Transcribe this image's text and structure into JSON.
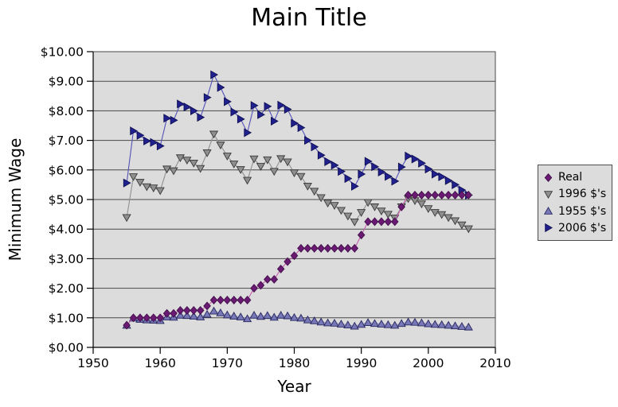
{
  "title": "Main Title",
  "colors": {
    "page_background": "#ffffff",
    "plot_background": "#dcdcdc",
    "gridline": "#4a4a4a",
    "axis": "#000000",
    "legend_background": "#dcdcdc",
    "legend_border": "#4d4d4d",
    "real_marker": "#6a1a72",
    "real_line": "#c45fb0",
    "dollars1996_marker": "#8f8f8f",
    "dollars1955_marker": "#7878b8",
    "dollars2006_marker": "#20208e"
  },
  "legend": {
    "items": [
      "Real",
      "1996 $'s",
      "1955 $'s",
      "2006 $'s"
    ]
  },
  "chart_data": {
    "type": "line",
    "title": "Main Title",
    "xlabel": "Year",
    "ylabel": "Minimum Wage",
    "xlim": [
      1950,
      2010
    ],
    "ylim": [
      0,
      10
    ],
    "grid": "horizontal",
    "legend_position": "right-outside",
    "plot_background": "#dcdcdc",
    "x_ticks": {
      "values": [
        1950,
        1960,
        1970,
        1980,
        1990,
        2000,
        2010
      ],
      "labels": [
        "1950",
        "1960",
        "1970",
        "1980",
        "1990",
        "2000",
        "2010"
      ]
    },
    "y_ticks": {
      "values": [
        0,
        1,
        2,
        3,
        4,
        5,
        6,
        7,
        8,
        9,
        10
      ],
      "labels": [
        "$0.00",
        "$1.00",
        "$2.00",
        "$3.00",
        "$4.00",
        "$5.00",
        "$6.00",
        "$7.00",
        "$8.00",
        "$9.00",
        "$10.00"
      ]
    },
    "x": [
      1955,
      1956,
      1957,
      1958,
      1959,
      1960,
      1961,
      1962,
      1963,
      1964,
      1965,
      1966,
      1967,
      1968,
      1969,
      1970,
      1971,
      1972,
      1973,
      1974,
      1975,
      1976,
      1977,
      1978,
      1979,
      1980,
      1981,
      1982,
      1983,
      1984,
      1985,
      1986,
      1987,
      1988,
      1989,
      1990,
      1991,
      1992,
      1993,
      1994,
      1995,
      1996,
      1997,
      1998,
      1999,
      2000,
      2001,
      2002,
      2003,
      2004,
      2005,
      2006
    ],
    "series": [
      {
        "name": "Real",
        "marker": "diamond",
        "fill": "#6a1a72",
        "edge": "#42104a",
        "line": "#c45fb0",
        "values": [
          0.75,
          1.0,
          1.0,
          1.0,
          1.0,
          1.0,
          1.15,
          1.15,
          1.25,
          1.25,
          1.25,
          1.25,
          1.4,
          1.6,
          1.6,
          1.6,
          1.6,
          1.6,
          1.6,
          2.0,
          2.1,
          2.3,
          2.3,
          2.65,
          2.9,
          3.1,
          3.35,
          3.35,
          3.35,
          3.35,
          3.35,
          3.35,
          3.35,
          3.35,
          3.35,
          3.8,
          4.25,
          4.25,
          4.25,
          4.25,
          4.25,
          4.75,
          5.15,
          5.15,
          5.15,
          5.15,
          5.15,
          5.15,
          5.15,
          5.15,
          5.15,
          5.15
        ]
      },
      {
        "name": "1996 $'s",
        "marker": "triangle-down",
        "fill": "#8f8f8f",
        "edge": "#383838",
        "line": "#8f8f8f",
        "values": [
          4.39,
          5.77,
          5.58,
          5.43,
          5.39,
          5.3,
          6.03,
          5.97,
          6.41,
          6.33,
          6.23,
          6.05,
          6.58,
          7.21,
          6.84,
          6.47,
          6.2,
          6.01,
          5.65,
          6.37,
          6.12,
          6.34,
          5.95,
          6.38,
          6.27,
          5.9,
          5.78,
          5.45,
          5.28,
          5.06,
          4.88,
          4.8,
          4.63,
          4.44,
          4.24,
          4.56,
          4.9,
          4.75,
          4.61,
          4.5,
          4.37,
          4.75,
          5.03,
          4.96,
          4.85,
          4.69,
          4.56,
          4.49,
          4.39,
          4.28,
          4.14,
          4.01
        ]
      },
      {
        "name": "1955 $'s",
        "marker": "triangle-up",
        "fill": "#7878b8",
        "edge": "#26265e",
        "line": "#9898cc",
        "values": [
          0.75,
          0.99,
          0.95,
          0.93,
          0.92,
          0.91,
          1.03,
          1.02,
          1.09,
          1.08,
          1.06,
          1.03,
          1.12,
          1.23,
          1.17,
          1.1,
          1.06,
          1.03,
          0.97,
          1.09,
          1.05,
          1.08,
          1.02,
          1.09,
          1.07,
          1.01,
          0.99,
          0.93,
          0.9,
          0.86,
          0.83,
          0.82,
          0.79,
          0.76,
          0.72,
          0.78,
          0.84,
          0.81,
          0.79,
          0.77,
          0.75,
          0.81,
          0.86,
          0.85,
          0.83,
          0.8,
          0.78,
          0.77,
          0.75,
          0.73,
          0.71,
          0.69
        ]
      },
      {
        "name": "2006 $'s",
        "marker": "triangle-right",
        "fill": "#20208e",
        "edge": "#0e0e52",
        "line": "#5353b8",
        "values": [
          5.56,
          7.32,
          7.17,
          6.98,
          6.93,
          6.81,
          7.75,
          7.68,
          8.23,
          8.13,
          8.0,
          7.78,
          8.45,
          9.22,
          8.79,
          8.31,
          7.96,
          7.72,
          7.26,
          8.18,
          7.87,
          8.15,
          7.65,
          8.19,
          8.05,
          7.58,
          7.43,
          7.0,
          6.78,
          6.5,
          6.28,
          6.16,
          5.95,
          5.71,
          5.45,
          5.86,
          6.29,
          6.11,
          5.93,
          5.78,
          5.62,
          6.1,
          6.47,
          6.37,
          6.23,
          6.03,
          5.86,
          5.77,
          5.64,
          5.5,
          5.32,
          5.15
        ]
      }
    ],
    "draw_order": [
      1,
      2,
      3,
      0
    ]
  }
}
